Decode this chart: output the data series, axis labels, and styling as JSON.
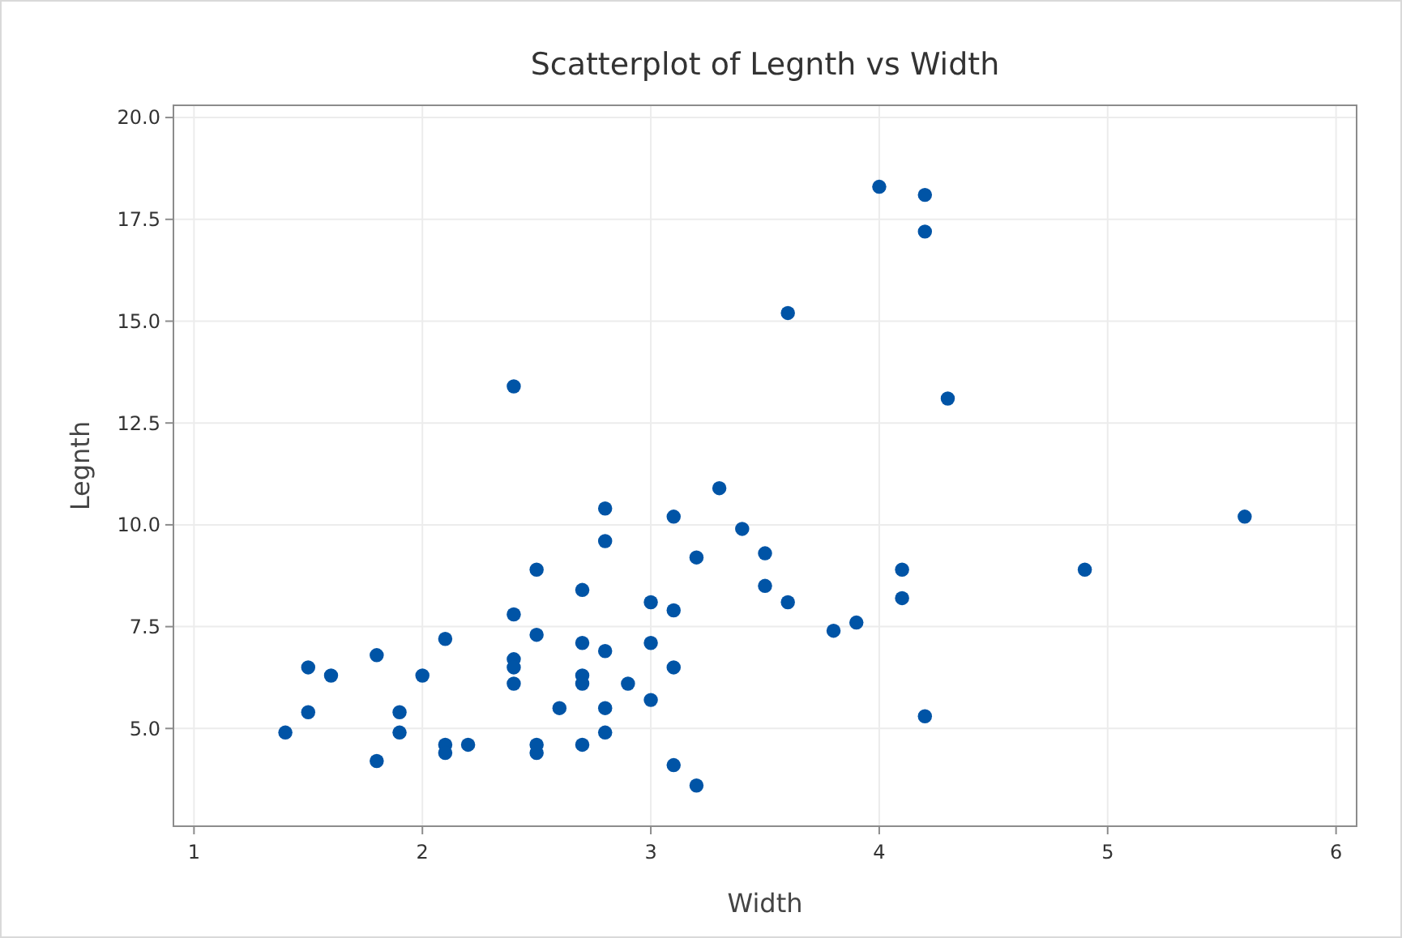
{
  "chart_data": {
    "type": "scatter",
    "title": "Scatterplot of Legnth vs Width",
    "xlabel": "Width",
    "ylabel": "Legnth",
    "x": [
      1.4,
      1.5,
      1.5,
      1.6,
      1.8,
      1.8,
      1.9,
      1.9,
      2.0,
      2.1,
      2.1,
      2.1,
      2.2,
      2.4,
      2.4,
      2.4,
      2.4,
      2.4,
      2.5,
      2.5,
      2.5,
      2.5,
      2.6,
      2.7,
      2.7,
      2.7,
      2.7,
      2.7,
      2.8,
      2.8,
      2.8,
      2.8,
      2.8,
      2.9,
      3.0,
      3.0,
      3.0,
      3.1,
      3.1,
      3.1,
      3.1,
      3.2,
      3.2,
      3.3,
      3.4,
      3.5,
      3.5,
      3.6,
      3.6,
      3.8,
      3.9,
      4.0,
      4.2,
      4.2,
      4.2,
      4.1,
      4.1,
      4.3,
      4.9,
      5.6
    ],
    "values": [
      4.9,
      6.5,
      5.4,
      6.3,
      6.8,
      4.2,
      5.4,
      4.9,
      6.3,
      7.2,
      4.6,
      4.4,
      4.6,
      13.4,
      7.8,
      6.7,
      6.5,
      6.1,
      8.9,
      7.3,
      4.6,
      4.4,
      5.5,
      8.4,
      7.1,
      6.3,
      6.1,
      4.6,
      10.4,
      9.6,
      6.9,
      5.5,
      4.9,
      6.1,
      8.1,
      7.1,
      5.7,
      10.2,
      7.9,
      6.5,
      4.1,
      9.2,
      3.6,
      10.9,
      9.9,
      9.3,
      8.5,
      15.2,
      8.1,
      7.4,
      7.6,
      18.3,
      18.1,
      17.2,
      5.3,
      8.9,
      8.2,
      13.1,
      8.9,
      10.2
    ],
    "color": "#0054a6",
    "marker": "circle",
    "grid": true,
    "xlim": [
      0.91,
      6.09
    ],
    "xticks": [
      1,
      2,
      3,
      4,
      5,
      6
    ],
    "ylim": [
      2.6,
      20.3
    ],
    "yticks": [
      {
        "value": 5,
        "label": "5.0"
      },
      {
        "value": 7.5,
        "label": "7.5"
      },
      {
        "value": 10,
        "label": "10.0"
      },
      {
        "value": 12.5,
        "label": "12.5"
      },
      {
        "value": 15,
        "label": "15.0"
      },
      {
        "value": 17.5,
        "label": "17.5"
      },
      {
        "value": 20,
        "label": "20.0"
      }
    ]
  }
}
